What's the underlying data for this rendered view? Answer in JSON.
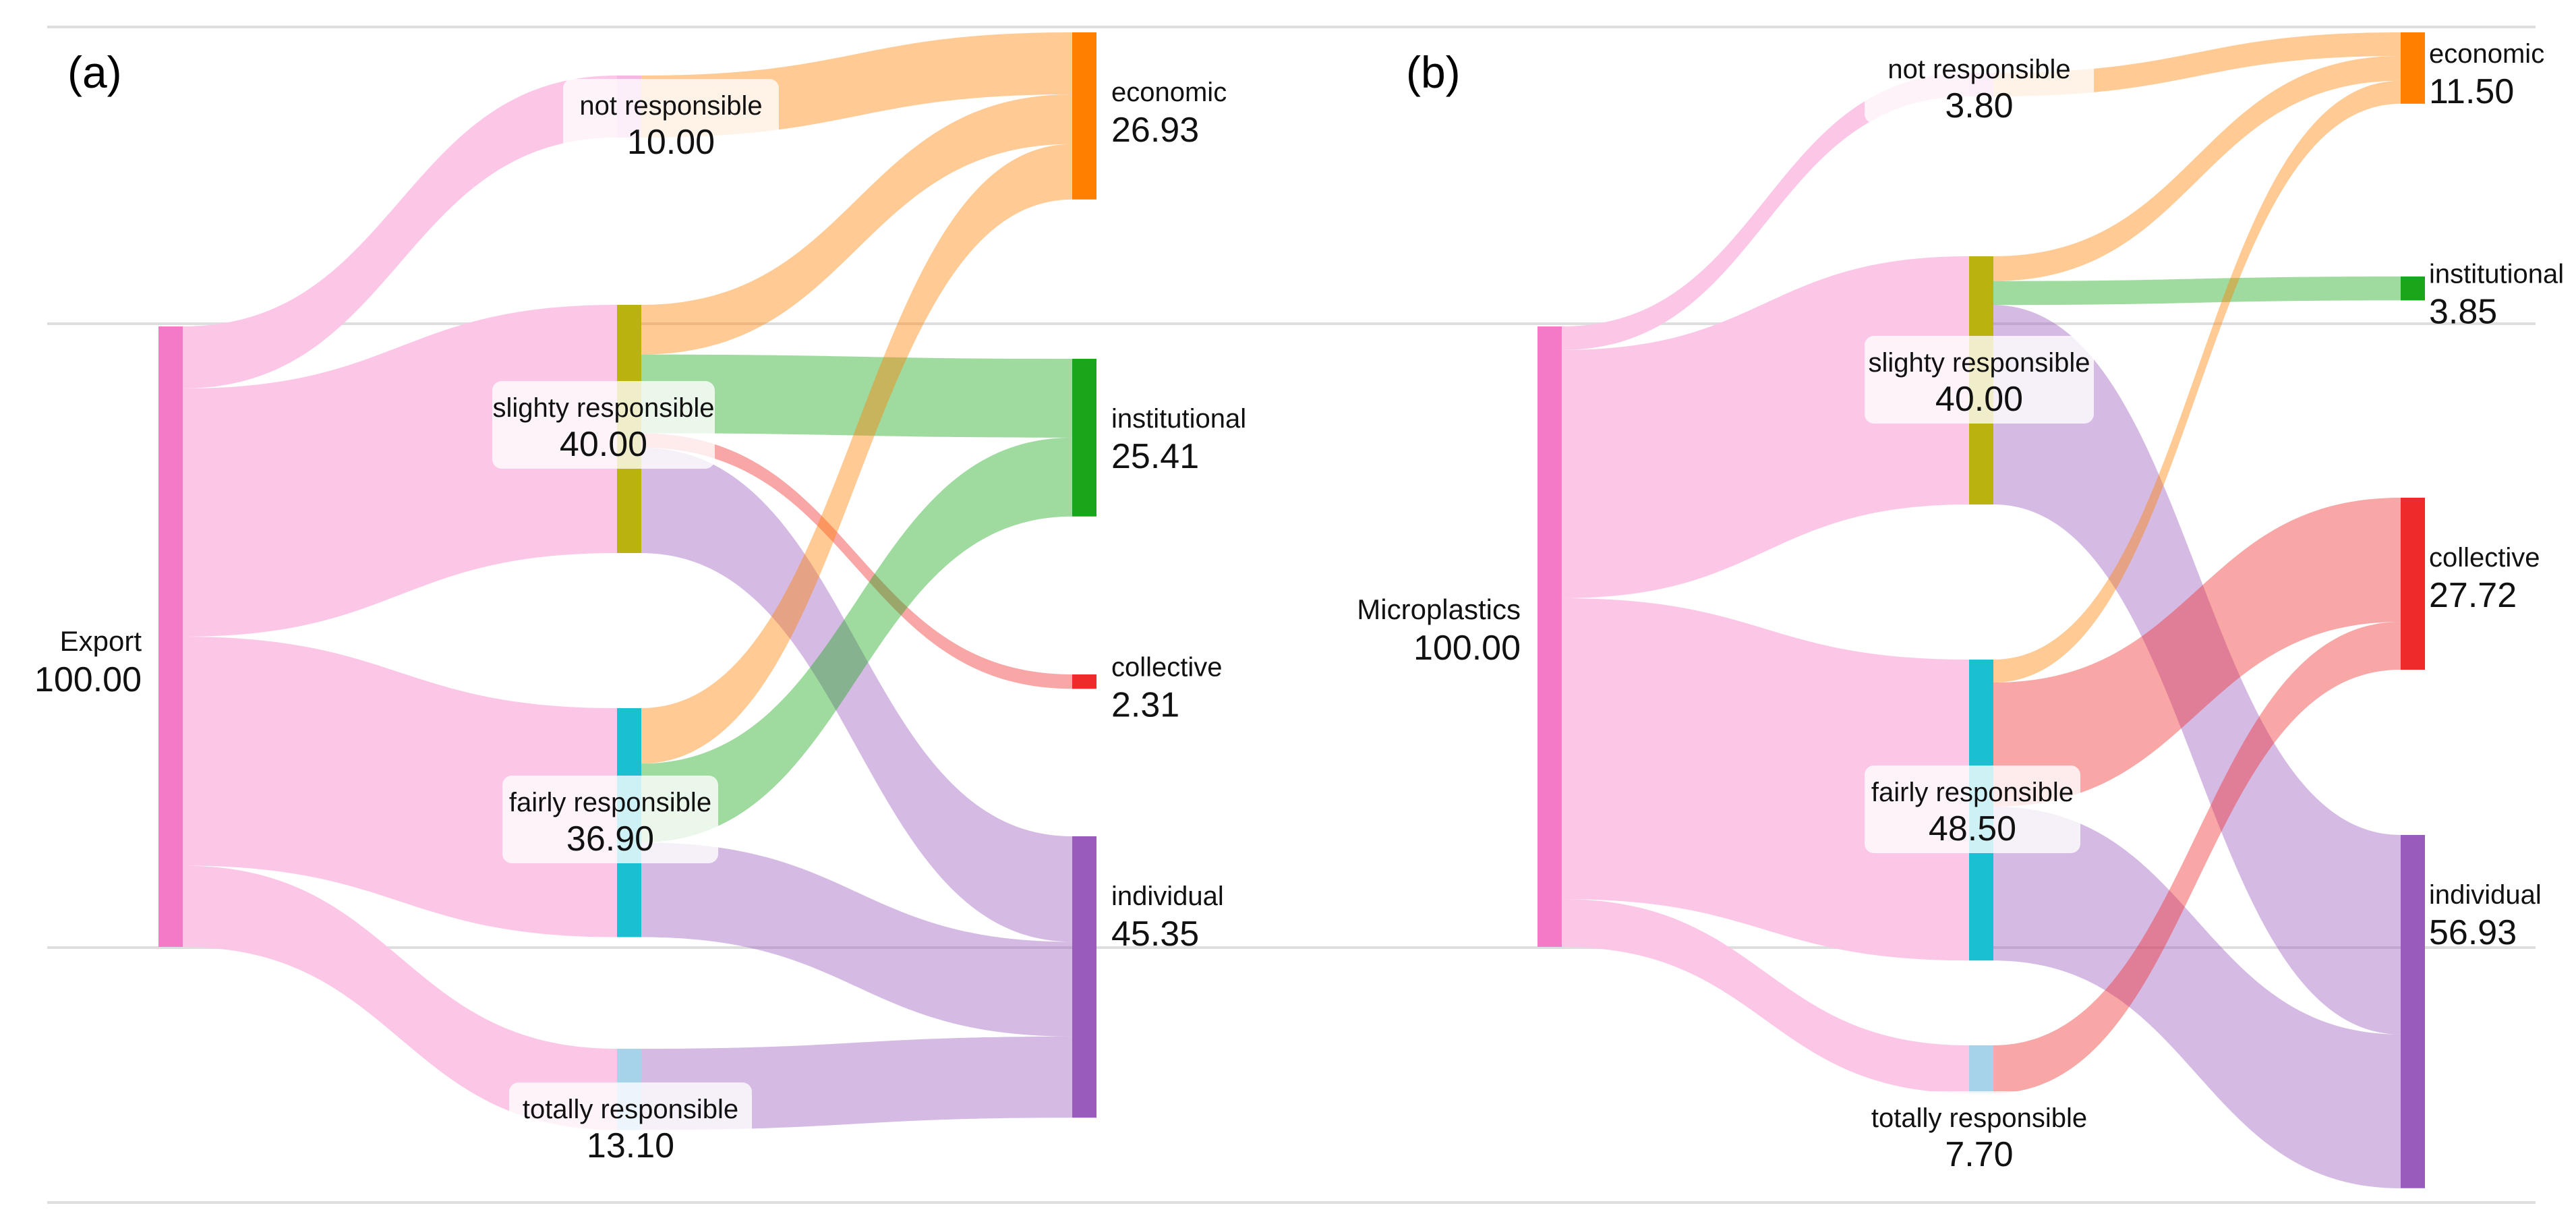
{
  "chart_data": [
    {
      "type": "sankey",
      "panel_label": "(a)",
      "source": {
        "name": "Export",
        "value": "100.00"
      },
      "levels": [
        {
          "name": "not responsible",
          "value": "10.00",
          "color": "#f4b8e3"
        },
        {
          "name": "slighty responsible",
          "value": "40.00",
          "color": "#b9b20f"
        },
        {
          "name": "fairly responsible",
          "value": "36.90",
          "color": "#1bbfd2"
        },
        {
          "name": "totally responsible",
          "value": "13.10",
          "color": "#a7d3ea"
        }
      ],
      "targets": [
        {
          "name": "economic",
          "value": "26.93",
          "color": "#ff8000"
        },
        {
          "name": "institutional",
          "value": "25.41",
          "color": "#1aa61a"
        },
        {
          "name": "collective",
          "value": "2.31",
          "color": "#ee2a2a"
        },
        {
          "name": "individual",
          "value": "45.35",
          "color": "#9a5cbc"
        }
      ],
      "flows": [
        {
          "from": "not responsible",
          "to": "economic",
          "value": 10.0
        },
        {
          "from": "slighty responsible",
          "to": "economic",
          "value": 8.0
        },
        {
          "from": "slighty responsible",
          "to": "institutional",
          "value": 12.7
        },
        {
          "from": "slighty responsible",
          "to": "collective",
          "value": 2.31
        },
        {
          "from": "slighty responsible",
          "to": "individual",
          "value": 17.0
        },
        {
          "from": "fairly responsible",
          "to": "economic",
          "value": 8.93
        },
        {
          "from": "fairly responsible",
          "to": "institutional",
          "value": 12.71
        },
        {
          "from": "fairly responsible",
          "to": "individual",
          "value": 15.26
        },
        {
          "from": "totally responsible",
          "to": "individual",
          "value": 13.09
        }
      ]
    },
    {
      "type": "sankey",
      "panel_label": "(b)",
      "source": {
        "name": "Microplastics",
        "value": "100.00"
      },
      "levels": [
        {
          "name": "not responsible",
          "value": "3.80",
          "color": "#f4b8e3"
        },
        {
          "name": "slighty responsible",
          "value": "40.00",
          "color": "#b9b20f"
        },
        {
          "name": "fairly responsible",
          "value": "48.50",
          "color": "#1bbfd2"
        },
        {
          "name": "totally responsible",
          "value": "7.70",
          "color": "#a7d3ea"
        }
      ],
      "targets": [
        {
          "name": "economic",
          "value": "11.50",
          "color": "#ff8000"
        },
        {
          "name": "institutional",
          "value": "3.85",
          "color": "#1aa61a"
        },
        {
          "name": "collective",
          "value": "27.72",
          "color": "#ee2a2a"
        },
        {
          "name": "individual",
          "value": "56.93",
          "color": "#9a5cbc"
        }
      ],
      "flows": [
        {
          "from": "not responsible",
          "to": "economic",
          "value": 3.8
        },
        {
          "from": "slighty responsible",
          "to": "economic",
          "value": 4.0
        },
        {
          "from": "slighty responsible",
          "to": "institutional",
          "value": 3.85
        },
        {
          "from": "slighty responsible",
          "to": "individual",
          "value": 32.15
        },
        {
          "from": "fairly responsible",
          "to": "economic",
          "value": 3.7
        },
        {
          "from": "fairly responsible",
          "to": "collective",
          "value": 20.0
        },
        {
          "from": "fairly responsible",
          "to": "individual",
          "value": 24.8
        },
        {
          "from": "totally responsible",
          "to": "collective",
          "value": 7.72
        }
      ]
    }
  ],
  "colors": {
    "source_node": "#f47ac8",
    "source_flow": "#fcc4e6",
    "gridline": "#dedede",
    "text": "#111111",
    "label_box": "#ffffff"
  }
}
